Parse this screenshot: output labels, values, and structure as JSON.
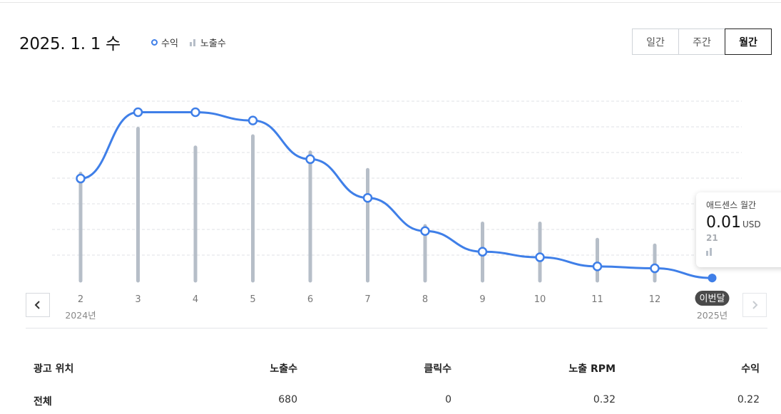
{
  "header": {
    "date": "2025. 1. 1 수",
    "legend": [
      {
        "label": "수익",
        "type": "line",
        "color": "#3f7fe8"
      },
      {
        "label": "노출수",
        "type": "bar",
        "color": "#b6bec8"
      }
    ],
    "period_tabs": [
      {
        "label": "일간",
        "active": false
      },
      {
        "label": "주간",
        "active": false
      },
      {
        "label": "월간",
        "active": true
      }
    ]
  },
  "chart_data": {
    "type": "line",
    "x_labels": [
      "2",
      "3",
      "4",
      "5",
      "6",
      "7",
      "8",
      "9",
      "10",
      "11",
      "12",
      "이번달"
    ],
    "year_labels": [
      {
        "index": 0,
        "label": "2024년"
      },
      {
        "index": 11,
        "label": "2025년"
      }
    ],
    "series": [
      {
        "name": "수익",
        "type": "line",
        "color": "#3f7fe8",
        "values": [
          0.37,
          0.61,
          0.61,
          0.58,
          0.44,
          0.3,
          0.18,
          0.105,
          0.085,
          0.052,
          0.045,
          0.01
        ]
      },
      {
        "name": "노출수",
        "type": "bar",
        "color": "#b6bec8",
        "values": [
          430,
          610,
          535,
          580,
          515,
          445,
          220,
          230,
          230,
          165,
          142,
          21
        ]
      }
    ],
    "grid": true,
    "current_highlight_index": 11
  },
  "tooltip": {
    "title": "애드센스 월간",
    "value": "0.01",
    "unit": "USD",
    "impressions": "21"
  },
  "nav": {
    "prev_icon": "chevron-left-icon",
    "next_icon": "chevron-right-icon"
  },
  "table": {
    "headers": [
      "광고 위치",
      "노출수",
      "클릭수",
      "노출 RPM",
      "수익"
    ],
    "rows": [
      [
        "전체",
        "680",
        "0",
        "0.32",
        "0.22"
      ]
    ]
  }
}
